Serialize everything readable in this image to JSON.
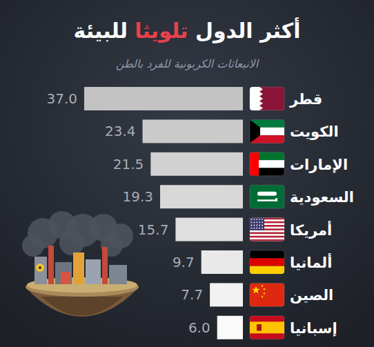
{
  "chart_data": {
    "type": "bar",
    "orientation": "horizontal",
    "title": "أكثر الدول تلويثا للبيئة",
    "subtitle": "الانبعاثات الكربونية للفرد بالطن",
    "categories": [
      "قطر",
      "الكويت",
      "الإمارات",
      "السعودية",
      "أمريكا",
      "ألمانيا",
      "الصين",
      "إسبانيا"
    ],
    "values": [
      37.0,
      23.4,
      21.5,
      19.3,
      15.7,
      9.7,
      7.7,
      6.0
    ],
    "value_labels": [
      "37.0",
      "23.4",
      "21.5",
      "19.3",
      "15.7",
      "9.7",
      "7.7",
      "6.0"
    ],
    "colors": [
      "#c3c3c3",
      "#cacaca",
      "#d1d1d1",
      "#d8d8d8",
      "#e0e0e0",
      "#e9e9e9",
      "#f2f2f2",
      "#fafafa"
    ],
    "data_labels": true,
    "tick_labels": false,
    "grid": false
  }
}
